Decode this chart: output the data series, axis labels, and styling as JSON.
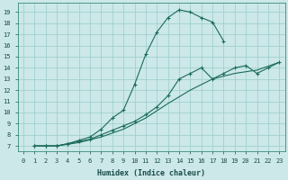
{
  "xlabel": "Humidex (Indice chaleur)",
  "bg_color": "#cce8e8",
  "grid_color": "#99cccc",
  "line_color": "#1a6b5a",
  "xlim": [
    -0.5,
    23.5
  ],
  "ylim": [
    6.5,
    19.8
  ],
  "xticks": [
    0,
    1,
    2,
    3,
    4,
    5,
    6,
    7,
    8,
    9,
    10,
    11,
    12,
    13,
    14,
    15,
    16,
    17,
    18,
    19,
    20,
    21,
    22,
    23
  ],
  "yticks": [
    7,
    8,
    9,
    10,
    11,
    12,
    13,
    14,
    15,
    16,
    17,
    18,
    19
  ],
  "line1_x": [
    1,
    2,
    3,
    4,
    5,
    6,
    7,
    8,
    9,
    10,
    11,
    12,
    13,
    14,
    15,
    16,
    17,
    18
  ],
  "line1_y": [
    7,
    7,
    7,
    7.2,
    7.5,
    7.8,
    8.5,
    9.5,
    10.2,
    12.5,
    15.2,
    17.2,
    18.5,
    19.2,
    19.0,
    18.5,
    18.1,
    16.4
  ],
  "line2_x": [
    1,
    2,
    3,
    4,
    5,
    6,
    7,
    8,
    9,
    10,
    11,
    12,
    13,
    14,
    15,
    16,
    17,
    18,
    19,
    20,
    21,
    22,
    23
  ],
  "line2_y": [
    7,
    7,
    7,
    7.2,
    7.4,
    7.6,
    8.0,
    8.4,
    8.8,
    9.2,
    9.8,
    10.5,
    11.5,
    13.0,
    13.5,
    14.0,
    13.0,
    13.5,
    14.0,
    14.2,
    13.5,
    14.0,
    14.5
  ],
  "line3_x": [
    1,
    3,
    5,
    7,
    9,
    11,
    13,
    15,
    17,
    19,
    21,
    23
  ],
  "line3_y": [
    7,
    7,
    7.3,
    7.8,
    8.5,
    9.5,
    10.8,
    12.0,
    13.0,
    13.5,
    13.8,
    14.5
  ]
}
